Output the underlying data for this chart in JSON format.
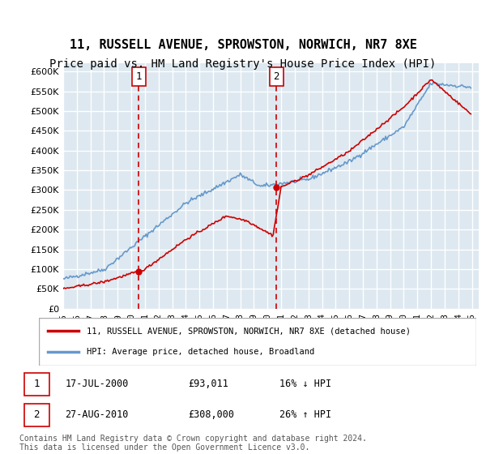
{
  "title": "11, RUSSELL AVENUE, SPROWSTON, NORWICH, NR7 8XE",
  "subtitle": "Price paid vs. HM Land Registry's House Price Index (HPI)",
  "title_fontsize": 11,
  "subtitle_fontsize": 10,
  "ylim": [
    0,
    620000
  ],
  "yticks": [
    0,
    50000,
    100000,
    150000,
    200000,
    250000,
    300000,
    350000,
    400000,
    450000,
    500000,
    550000,
    600000
  ],
  "ytick_labels": [
    "£0",
    "£50K",
    "£100K",
    "£150K",
    "£200K",
    "£250K",
    "£300K",
    "£350K",
    "£400K",
    "£450K",
    "£500K",
    "£550K",
    "£600K"
  ],
  "plot_bg_color": "#dde8f0",
  "grid_color": "#ffffff",
  "transaction1_year": 2000.54,
  "transaction2_year": 2010.65,
  "transaction1_price": 93011,
  "transaction2_price": 308000,
  "legend_line1": "11, RUSSELL AVENUE, SPROWSTON, NORWICH, NR7 8XE (detached house)",
  "legend_line2": "HPI: Average price, detached house, Broadland",
  "table_row1": [
    "1",
    "17-JUL-2000",
    "£93,011",
    "16% ↓ HPI"
  ],
  "table_row2": [
    "2",
    "27-AUG-2010",
    "£308,000",
    "26% ↑ HPI"
  ],
  "footnote": "Contains HM Land Registry data © Crown copyright and database right 2024.\nThis data is licensed under the Open Government Licence v3.0.",
  "red_line_color": "#cc0000",
  "blue_line_color": "#6699cc",
  "vline_color": "#cc0000"
}
